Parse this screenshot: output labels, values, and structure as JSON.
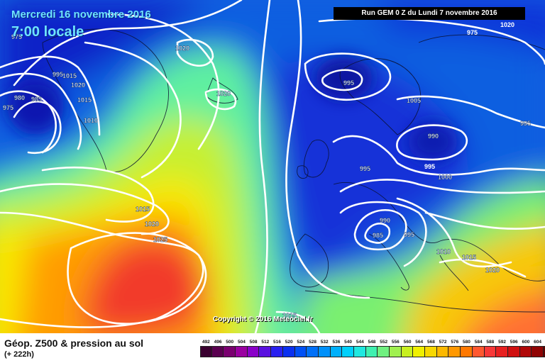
{
  "header": {
    "date": "Mercredi 16 novembre 2016",
    "time": "7:00 locale",
    "run": "Run GEM 0 Z du Lundi 7 novembre 2016"
  },
  "copyright": "Copyright © 2016 Meteociel.fr",
  "footer": {
    "title": "Géop. Z500 & pression au sol",
    "lead": "(+ 222h)"
  },
  "legend": {
    "values": [
      "492",
      "496",
      "500",
      "504",
      "508",
      "512",
      "516",
      "520",
      "524",
      "528",
      "532",
      "536",
      "540",
      "544",
      "548",
      "552",
      "556",
      "560",
      "564",
      "568",
      "572",
      "576",
      "580",
      "584",
      "588",
      "592",
      "596",
      "600",
      "604",
      "608",
      "612"
    ],
    "colors": [
      "#3a0030",
      "#5a0050",
      "#7a0070",
      "#9a00a0",
      "#8a00c8",
      "#5a10e0",
      "#2a20f0",
      "#0a30f0",
      "#0050f5",
      "#0070f8",
      "#0090fa",
      "#00b0fc",
      "#00d0fc",
      "#20e8e0",
      "#40f0b0",
      "#70f080",
      "#a0f050",
      "#c8f020",
      "#f0f000",
      "#f8d800",
      "#fcb800",
      "#ff9800",
      "#ff7800",
      "#ff5830",
      "#f83838",
      "#e82020",
      "#d01010",
      "#b00808",
      "#900404",
      "#600000",
      "#300000"
    ]
  },
  "isobars": [
    "1020",
    "995",
    "1015",
    "1020",
    "990",
    "995",
    "1010",
    "1015",
    "1010",
    "980",
    "985",
    "975",
    "975",
    "1020",
    "995",
    "1005",
    "990",
    "995",
    "995",
    "1000",
    "1015",
    "1020",
    "1025",
    "990",
    "985",
    "995",
    "1010",
    "1015",
    "1020",
    "1015"
  ]
}
